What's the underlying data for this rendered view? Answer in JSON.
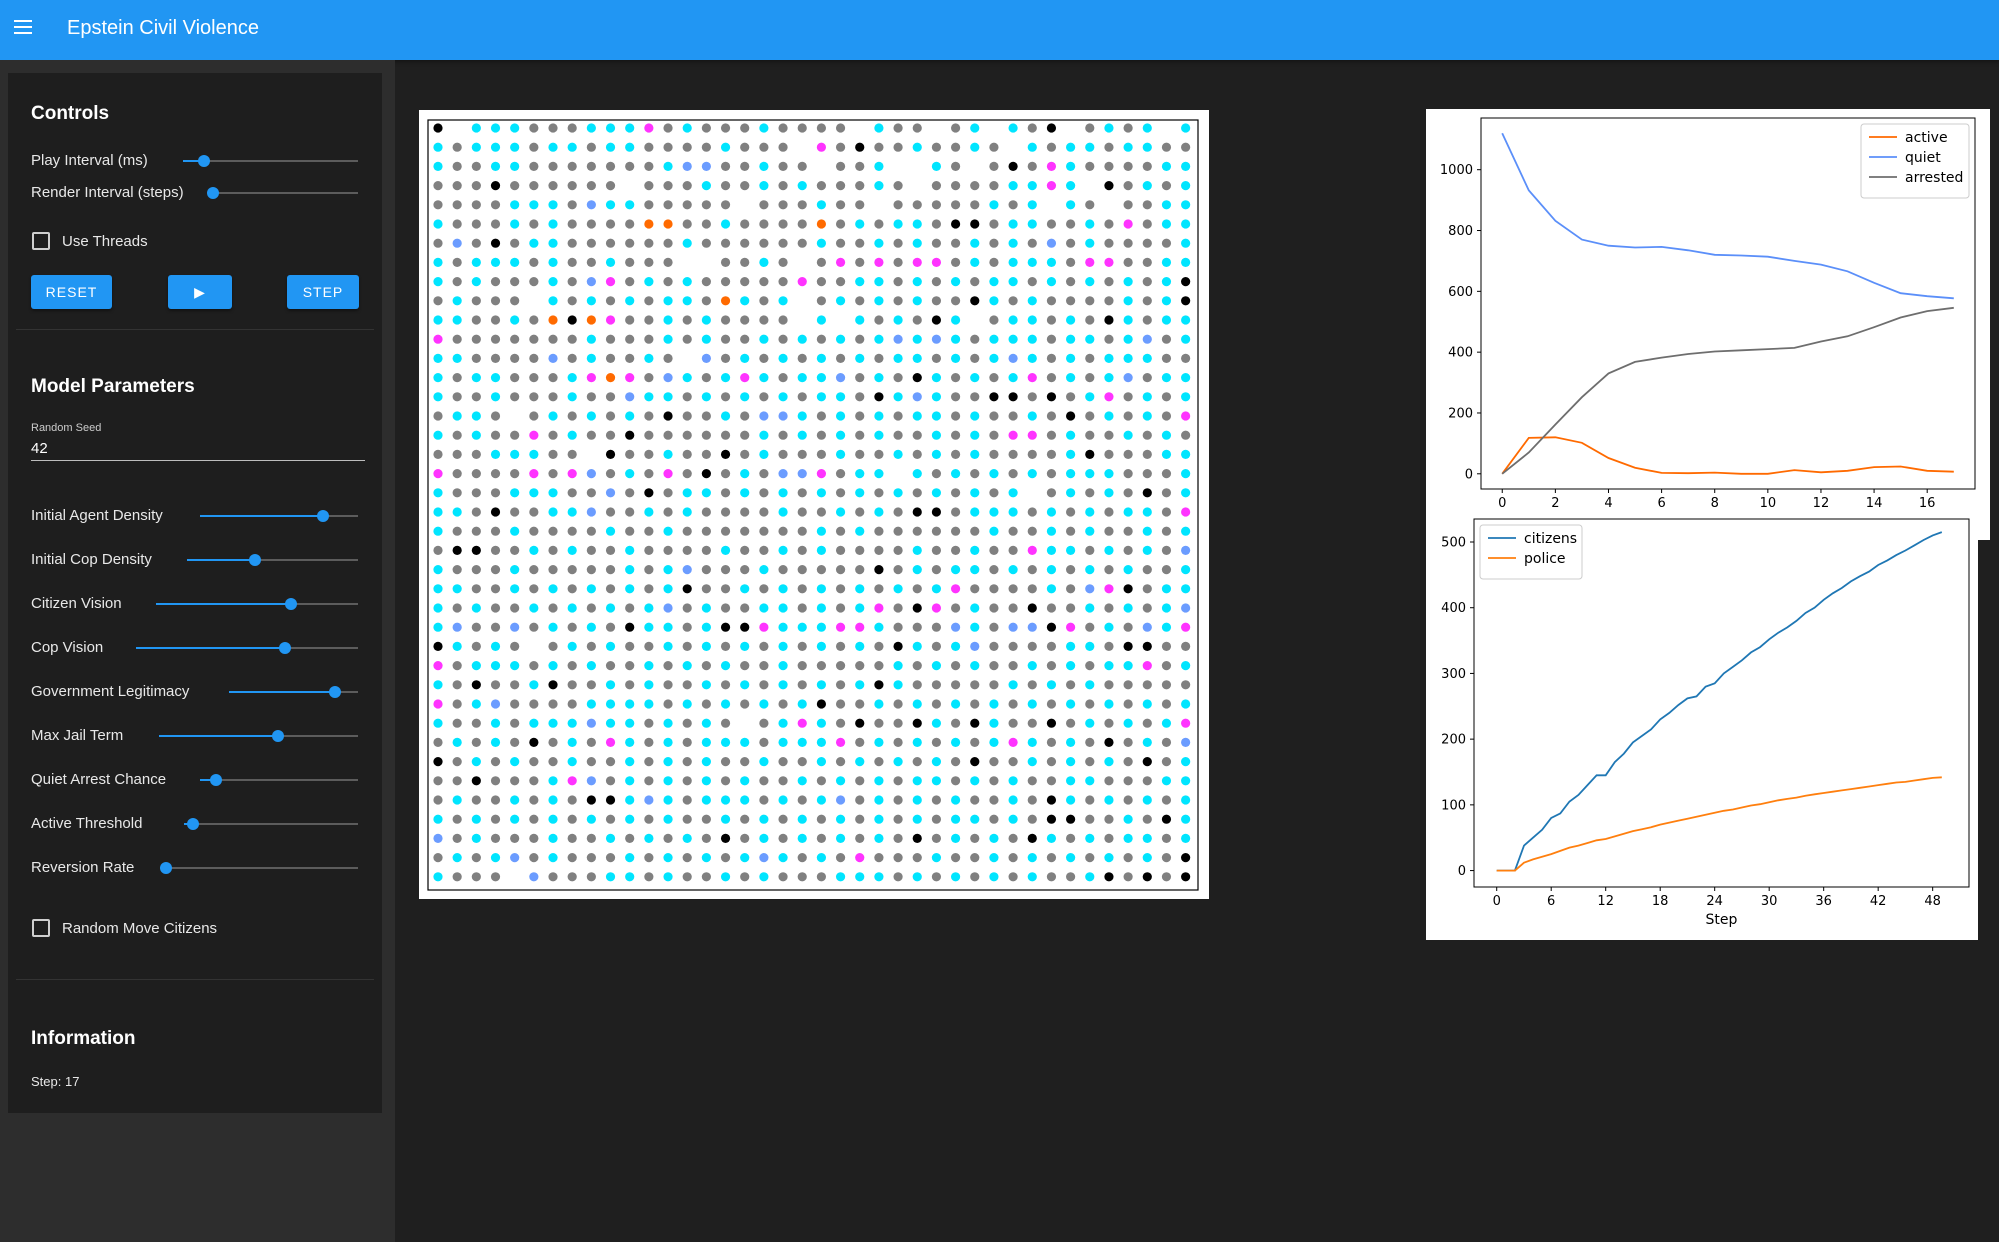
{
  "app": {
    "title": "Epstein Civil Violence"
  },
  "controls": {
    "title": "Controls",
    "sliders": [
      {
        "label": "Play Interval (ms)",
        "value": 0.12
      },
      {
        "label": "Render Interval (steps)",
        "value": 0.0
      }
    ],
    "use_threads": {
      "label": "Use Threads",
      "checked": false
    },
    "buttons": {
      "reset": "RESET",
      "play": "▶",
      "step": "STEP"
    }
  },
  "model_parameters": {
    "title": "Model Parameters",
    "random_seed": {
      "label": "Random Seed",
      "value": "42"
    },
    "sliders": [
      {
        "label": "Initial Agent Density",
        "value": 0.78
      },
      {
        "label": "Initial Cop Density",
        "value": 0.4
      },
      {
        "label": "Citizen Vision",
        "value": 0.67
      },
      {
        "label": "Cop Vision",
        "value": 0.67
      },
      {
        "label": "Government Legitimacy",
        "value": 0.82
      },
      {
        "label": "Max Jail Term",
        "value": 0.6
      },
      {
        "label": "Quiet Arrest Chance",
        "value": 0.1
      },
      {
        "label": "Active Threshold",
        "value": 0.05
      },
      {
        "label": "Reversion Rate",
        "value": 0.0
      }
    ],
    "random_move": {
      "label": "Random Move Citizens",
      "checked": false
    }
  },
  "information": {
    "title": "Information",
    "step_text": "Step: 17"
  },
  "grid": {
    "size": 40,
    "palette": {
      "black": "#000000",
      "gray": "#808080",
      "cyan": "#00e5ff",
      "blue": "#6b9cff",
      "purple": "#b366ff",
      "magenta": "#ff33ff",
      "orange": "#ff6a00"
    },
    "rows": [
      "k.cccgggcccmgcgggcgggg.cgg.gc.cgk.gcgc.cc",
      "cgcccgccgccggggcggg.mgkggcggcg.cgccgccgg",
      "cggccgggggggcbbggcgg.ggc..cg.gkgmcggggcc",
      "gggkgggggg.gggcggcgcgggcg.ggggccmc.kgcgc",
      "ggggcccgbccggggg.gggcgg.gggggcgc.cg.ggcc",
      "cgggcgcggggooggcggggogcgccgkkgccggcgmgcc",
      "gbgkgccggggggcggggggcggcgcggcgcgbgcggggc",
      "cgcccgcggcggg..ggcg.gmgmgmmgcgcccgmmggcc",
      "cgcgggcgbmgcgcgggggmggccgcgcgccgcgcgcgck",
      "gcggg.cgcgcgccgocgc.gcgcgcggkcgcggggcgck",
      "ccggcgokomggcgcgggg.c.cgcgkc.gccgcgkcgcc",
      "mgggggggcgggcgcggcgcgcgcbcbcgcccgccgcbgc",
      "ccggggbgcggcg.bgcgcgcgcgccgcgcbcgcgcccgg",
      "cgccgggcmomgbcgcmcgccbgcgkcgcgcmgcgcbgcc",
      "cggcgggcggbccgcgcgcgccgkcbcggkkgkgcmgcgc",
      "gccg.gcgcgcgkggcgbbcgcgcgccgcggcgkgcgcgm",
      "cgcggmgcggkggggggcgcgcgcggcgcgmmgcggcgcg",
      "gggcccgg.kggcggkgcgggcggcgcgcggggckgggcc",
      "mggggmgmbgcgmgkgcgbbmgcc.cgcgcgcgcccgggc",
      "cgggcccggbgkgccgcgcgcgcgcgcgcgc.gcgcgkgc",
      "ccgkggccbggcgcggggcggcgcgkkgcccgcgcgccgm",
      "cgggcggggcggcgggggggcgcggggggcggcgcggcgc",
      "gkkggcgcggcggggcggcgcggggcggcggmccgcgcgb",
      "cgggcgggggcgcbgggcgggggkgcgccgcgcgcgcggc",
      "ccggcgcgcgcgckggcgcgcgcgcgcmggggcgbmkgcc",
      "cgcggcgcgcgcbgcggccgcgcmgkmgcggkggcgcgcb",
      "cbggbgcgcgkccgckkmcccmmcgggbcgbbkmgcgbcm",
      "kcgcg.gcgcggcgcgcgcgcgcgkcgcbggggccgkkgg",
      "mgcccgcgcggcgcgcggcgggggcgcgcggcgcgccmgc",
      "cgkggckggcgcggcgcgcgcgckcgggggcgcgcggggg",
      "mgcbggggccccgcgcgcgckggcgcgcgcgcgcgcgcgc",
      "cggcgcccbccgcgcg.gcmcgkggkcgkcggkgcgcgcm",
      "gcgcgkgcgmcgcgcccgcccmgcgcgcgcmcgcgkgcgb",
      "kgcgcggcggcgcgcggcggcgcgcgcgkggcgcgcgkgc",
      "ggkgggcmbgcgcgcgcggcgcgcgccgcgcggccgggcc",
      "gcggcgcgkkcbcgcccgcgcbgcgcgcggcgkcgcgcgc",
      "cgcgcgcgcgcgcggcgcgcgcgcgcgccgcgkkggcgkc",
      "bgcgggcggcgcgcgkgcgcgcgcgkgcgcgkcgcgccgc",
      "gcgcbgcgggcgcgcgcbcgcgmgggcggcgcgcgcgcgk",
      "cggg.bgggccgcggcgcgggcccgcgcgcgcggckgkgk"
    ]
  },
  "chart_data": [
    {
      "type": "line",
      "title": "",
      "xlabel": "",
      "ylabel": "",
      "xlim": [
        -0.8,
        17.8
      ],
      "ylim": [
        -50,
        1170
      ],
      "xticks": [
        "0",
        "2",
        "4",
        "6",
        "8",
        "10",
        "12",
        "14",
        "16"
      ],
      "yticks": [
        "0",
        "200",
        "400",
        "600",
        "800",
        "1000"
      ],
      "x": [
        0,
        1,
        2,
        3,
        4,
        5,
        6,
        7,
        8,
        9,
        10,
        11,
        12,
        13,
        14,
        15,
        16,
        17
      ],
      "series": [
        {
          "name": "active",
          "color": "#ff6a00",
          "values": [
            0,
            118,
            120,
            102,
            52,
            20,
            3,
            2,
            4,
            0,
            0,
            12,
            5,
            10,
            22,
            24,
            10,
            7
          ]
        },
        {
          "name": "quiet",
          "color": "#5b8ff9",
          "values": [
            1120,
            932,
            832,
            770,
            750,
            744,
            746,
            735,
            720,
            718,
            714,
            700,
            688,
            666,
            628,
            594,
            584,
            577
          ]
        },
        {
          "name": "arrested",
          "color": "#6e6e6e",
          "values": [
            0,
            70,
            162,
            252,
            330,
            368,
            382,
            394,
            402,
            406,
            410,
            414,
            435,
            452,
            482,
            514,
            535,
            546
          ]
        }
      ],
      "legend": "top-right",
      "grid": false
    },
    {
      "type": "line",
      "title": "",
      "xlabel": "Step",
      "ylabel": "",
      "xlim": [
        -2.5,
        52
      ],
      "ylim": [
        -25,
        535
      ],
      "xticks": [
        "0",
        "6",
        "12",
        "18",
        "24",
        "30",
        "36",
        "42",
        "48"
      ],
      "yticks": [
        "0",
        "100",
        "200",
        "300",
        "400",
        "500"
      ],
      "x": [
        0,
        2,
        3,
        4,
        5,
        6,
        7,
        8,
        9,
        10,
        11,
        12,
        13,
        14,
        15,
        16,
        17,
        18,
        19,
        20,
        21,
        22,
        23,
        24,
        25,
        26,
        27,
        28,
        29,
        30,
        31,
        32,
        33,
        34,
        35,
        36,
        37,
        38,
        39,
        40,
        41,
        42,
        43,
        44,
        45,
        46,
        47,
        48,
        49
      ],
      "series": [
        {
          "name": "citizens",
          "color": "#1f77b4",
          "values": [
            0,
            0,
            38,
            50,
            62,
            80,
            87,
            105,
            115,
            130,
            145,
            145,
            165,
            178,
            195,
            205,
            215,
            230,
            240,
            252,
            262,
            265,
            280,
            285,
            300,
            310,
            320,
            332,
            340,
            352,
            362,
            370,
            380,
            392,
            400,
            412,
            422,
            430,
            440,
            448,
            455,
            465,
            472,
            480,
            487,
            495,
            503,
            510,
            515
          ]
        },
        {
          "name": "police",
          "color": "#ff7f0e",
          "values": [
            0,
            0,
            12,
            17,
            21,
            25,
            30,
            35,
            38,
            42,
            46,
            48,
            52,
            56,
            60,
            63,
            66,
            70,
            73,
            76,
            79,
            82,
            85,
            88,
            91,
            93,
            96,
            99,
            101,
            104,
            107,
            109,
            111,
            114,
            116,
            118,
            120,
            122,
            124,
            126,
            128,
            130,
            132,
            134,
            135,
            137,
            139,
            141,
            142
          ]
        }
      ],
      "legend": "top-left",
      "grid": false
    }
  ]
}
